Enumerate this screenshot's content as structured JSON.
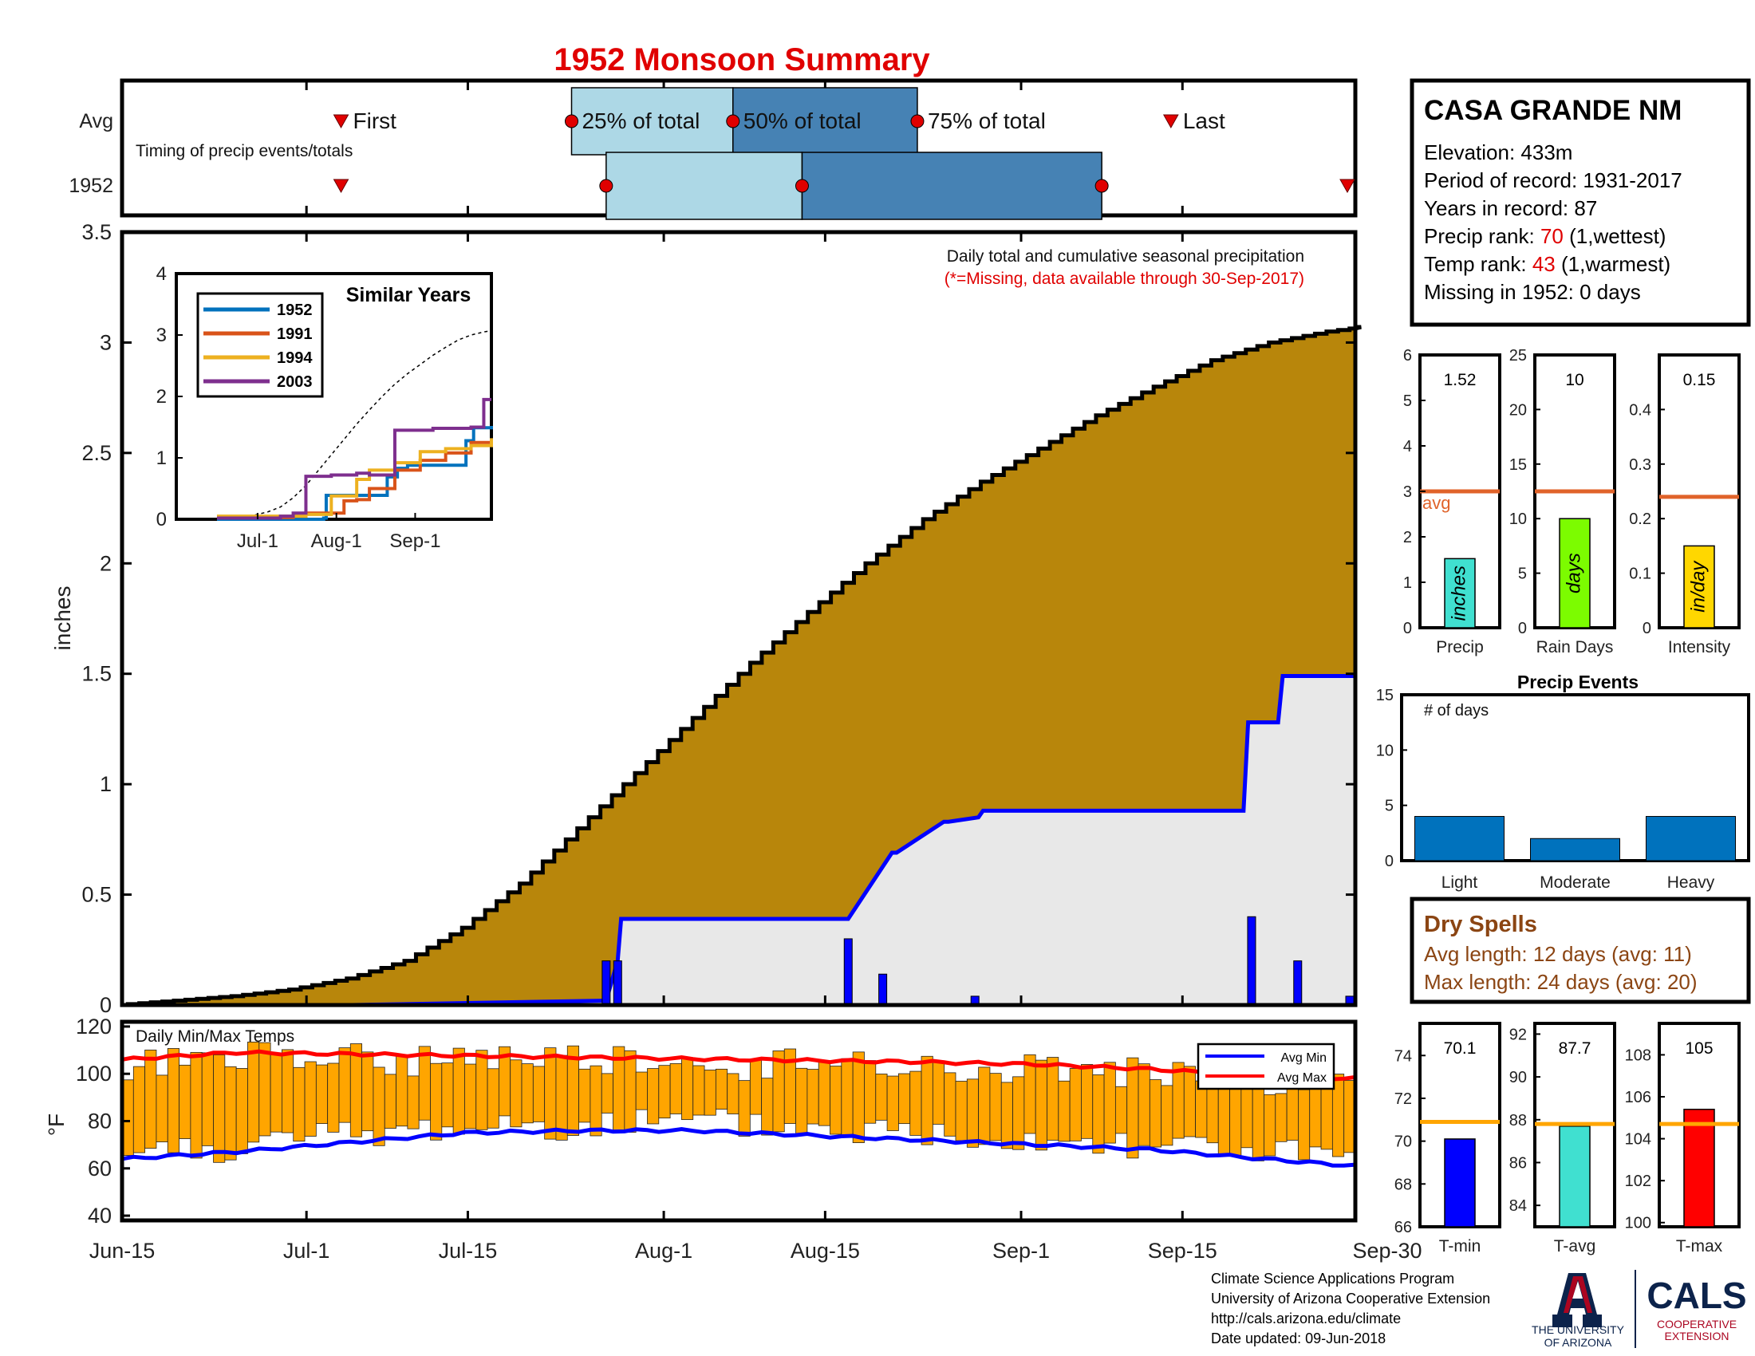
{
  "title": "1952 Monsoon Summary",
  "timing": {
    "row_labels": [
      "Avg",
      "1952"
    ],
    "caption": "Timing of precip events/totals",
    "labels": {
      "first": "First",
      "p25": "25% of total",
      "p50": "50% of total",
      "p75": "75% of total",
      "last": "Last"
    },
    "avg": {
      "first": "Jul-4",
      "p25": "Jul-24",
      "p50": "Aug-7",
      "p75": "Aug-23",
      "last": "Sep-14"
    },
    "year": {
      "first": "Jul-4",
      "p25": "Jul-27",
      "p50": "Aug-13",
      "p75": "Sep-8",
      "last": "Sep-30"
    },
    "colors": {
      "light": "#add8e6",
      "dark": "#4682b4",
      "marker": "#e00000"
    }
  },
  "station": {
    "name": "CASA GRANDE NM",
    "elevation": "Elevation: 433m",
    "period": "Period of record: 1931-2017",
    "years": "Years in record: 87",
    "precip_rank_label": "Precip rank: ",
    "precip_rank_value": "70",
    "precip_rank_note": " (1,wettest)",
    "temp_rank_label": "Temp rank: ",
    "temp_rank_value": "43",
    "temp_rank_note": " (1,warmest)",
    "missing": "Missing in 1952: 0 days"
  },
  "main_note": {
    "line1": "Daily total and cumulative seasonal precipitation",
    "line2": "(*=Missing, data available through 30-Sep-2017)"
  },
  "x_ticks": [
    "Jun-15",
    "Jul-1",
    "Jul-15",
    "Aug-1",
    "Aug-15",
    "Sep-1",
    "Sep-15",
    "Sep-30"
  ],
  "inset": {
    "title": "Similar Years",
    "x_ticks": [
      "Jul-1",
      "Aug-1",
      "Sep-1"
    ],
    "y_ticks": [
      "0",
      "1",
      "2",
      "3",
      "4"
    ]
  },
  "temp_panel": {
    "label": "Daily Min/Max Temps",
    "ylabel": "°F",
    "y_ticks": [
      "40",
      "60",
      "80",
      "100",
      "120"
    ],
    "legend": [
      "Avg Min",
      "Avg Max"
    ]
  },
  "summary_bars": [
    {
      "label": "Precip",
      "value_text": "1.52",
      "unit": "inches",
      "value": 1.52,
      "avg": 3.0,
      "ylim": [
        0,
        6
      ],
      "ticks": [
        "0",
        "1",
        "2",
        "3",
        "4",
        "5",
        "6"
      ],
      "color": "#40e0d0",
      "avg_label": "avg"
    },
    {
      "label": "Rain Days",
      "value_text": "10",
      "unit": "days",
      "value": 10,
      "avg": 12.5,
      "ylim": [
        0,
        25
      ],
      "ticks": [
        "0",
        "5",
        "10",
        "15",
        "20",
        "25"
      ],
      "color": "#7cfc00"
    },
    {
      "label": "Intensity",
      "value_text": "0.15",
      "unit": "in/day",
      "value": 0.15,
      "avg": 0.24,
      "ylim": [
        0,
        0.5
      ],
      "ticks": [
        "0",
        "0.1",
        "0.2",
        "0.3",
        "0.4"
      ],
      "color": "#ffd700"
    }
  ],
  "precip_events": {
    "title": "Precip Events",
    "ylabel": "# of days",
    "categories": [
      "Light",
      "Moderate",
      "Heavy"
    ],
    "values": [
      4,
      2,
      4
    ],
    "ylim": [
      0,
      15
    ],
    "ticks": [
      "0",
      "5",
      "10",
      "15"
    ]
  },
  "dry_spells": {
    "title": "Dry Spells",
    "avg_length": "Avg length: 12 days (avg: 11)",
    "max_length": "Max length: 24 days (avg: 20)"
  },
  "temp_bars": [
    {
      "label": "T-min",
      "value_text": "70.1",
      "value": 70.1,
      "avg": 70.9,
      "ylim": [
        66,
        75.5
      ],
      "ticks": [
        "66",
        "68",
        "70",
        "72",
        "74"
      ],
      "color": "#0000ff"
    },
    {
      "label": "T-avg",
      "value_text": "87.7",
      "value": 87.7,
      "avg": 87.8,
      "ylim": [
        83,
        92.5
      ],
      "ticks": [
        "84",
        "86",
        "88",
        "90",
        "92"
      ],
      "color": "#40e0d0"
    },
    {
      "label": "T-max",
      "value_text": "105",
      "value": 105.4,
      "avg": 104.7,
      "ylim": [
        99.8,
        109.5
      ],
      "ticks": [
        "100",
        "102",
        "104",
        "106",
        "108"
      ],
      "color": "#ff0000"
    }
  ],
  "footer": {
    "line1": "Climate Science Applications Program",
    "line2": "University of Arizona Cooperative Extension",
    "line3": "http://cals.arizona.edu/climate",
    "line4": " Date updated: 09-Jun-2018"
  },
  "logo": {
    "ua_line1": "THE UNIVERSITY",
    "ua_line2": "OF ARIZONA",
    "cals": "CALS",
    "cals_line1": "COOPERATIVE",
    "cals_line2": "EXTENSION"
  },
  "chart_data": {
    "type": "area",
    "title": "Daily total and cumulative seasonal precipitation",
    "xlabel": "",
    "ylabel": "inches",
    "x_ticks": [
      "Jun-15",
      "Jul-1",
      "Jul-15",
      "Aug-1",
      "Aug-15",
      "Sep-1",
      "Sep-15",
      "Sep-30"
    ],
    "ylim": [
      0,
      3.5
    ],
    "y_ticks": [
      "0",
      "0.5",
      "1",
      "1.5",
      "2",
      "2.5",
      "3",
      "3.5"
    ],
    "average_cumulative": {
      "days": [
        0,
        5,
        10,
        15,
        20,
        25,
        30,
        35,
        40,
        45,
        50,
        55,
        60,
        65,
        70,
        75,
        80,
        85,
        90,
        95,
        100,
        105,
        108
      ],
      "values": [
        0,
        0.02,
        0.04,
        0.07,
        0.12,
        0.2,
        0.35,
        0.55,
        0.8,
        1.05,
        1.3,
        1.55,
        1.78,
        2.0,
        2.2,
        2.37,
        2.52,
        2.67,
        2.8,
        2.92,
        3.0,
        3.05,
        3.07
      ]
    },
    "daily_precip": [
      {
        "date": "Jul-27",
        "value": 0.2
      },
      {
        "date": "Jul-28",
        "value": 0.2
      },
      {
        "date": "Aug-17",
        "value": 0.3
      },
      {
        "date": "Aug-20",
        "value": 0.14
      },
      {
        "date": "Aug-28",
        "value": 0.04
      },
      {
        "date": "Sep-21",
        "value": 0.4
      },
      {
        "date": "Sep-25",
        "value": 0.2
      },
      {
        "date": "Sep-30",
        "value": 0.04
      }
    ],
    "year_cumulative": {
      "days": [
        0,
        20,
        42,
        43,
        43.3,
        63,
        66.8,
        67.2,
        71.3,
        71.7,
        74.3,
        74.7,
        97.3,
        97.7,
        100.3,
        100.7,
        107.3,
        108
      ],
      "values": [
        0,
        0,
        0.02,
        0.2,
        0.39,
        0.39,
        0.69,
        0.69,
        0.83,
        0.83,
        0.85,
        0.88,
        0.88,
        1.28,
        1.28,
        1.49,
        1.49,
        1.52
      ]
    },
    "temperature": {
      "ylim": [
        38,
        122
      ],
      "avg_max": {
        "days": [
          0,
          10,
          25,
          40,
          55,
          70,
          80,
          90,
          100,
          108
        ],
        "values": [
          106,
          109,
          108,
          107,
          106,
          105,
          104,
          102,
          99,
          98
        ]
      },
      "avg_min": {
        "days": [
          0,
          10,
          20,
          30,
          40,
          50,
          60,
          70,
          80,
          90,
          100,
          108
        ],
        "values": [
          64,
          67,
          71,
          75,
          76,
          76,
          74,
          72,
          70,
          68,
          64,
          61
        ]
      }
    },
    "inset_similar_years": {
      "series": [
        {
          "name": "1952",
          "color": "#0072bd",
          "days": [
            0,
            20,
            42,
            43,
            63,
            67,
            71,
            75,
            97,
            98,
            100,
            101,
            108
          ],
          "values": [
            0,
            0,
            0.02,
            0.39,
            0.39,
            0.69,
            0.83,
            0.88,
            0.88,
            1.28,
            1.28,
            1.49,
            1.52
          ]
        },
        {
          "name": "1991",
          "color": "#d95319",
          "days": [
            0,
            25,
            30,
            35,
            50,
            55,
            60,
            70,
            80,
            90,
            100,
            108
          ],
          "values": [
            0.02,
            0.03,
            0.05,
            0.1,
            0.3,
            0.32,
            0.5,
            0.8,
            0.96,
            1.08,
            1.25,
            1.28
          ]
        },
        {
          "name": "1994",
          "color": "#edb120",
          "days": [
            0,
            20,
            35,
            45,
            55,
            60,
            70,
            80,
            90,
            100,
            108
          ],
          "values": [
            0.05,
            0.05,
            0.08,
            0.38,
            0.65,
            0.8,
            0.92,
            1.1,
            1.15,
            1.2,
            1.32
          ]
        },
        {
          "name": "2003",
          "color": "#7e2f8e",
          "days": [
            0,
            25,
            30,
            35,
            45,
            55,
            60,
            70,
            80,
            85,
            100,
            105,
            108
          ],
          "values": [
            0.02,
            0.05,
            0.1,
            0.7,
            0.72,
            0.75,
            0.72,
            1.45,
            1.45,
            1.48,
            1.5,
            1.95,
            1.95
          ]
        }
      ],
      "ylim": [
        0,
        4
      ]
    }
  }
}
